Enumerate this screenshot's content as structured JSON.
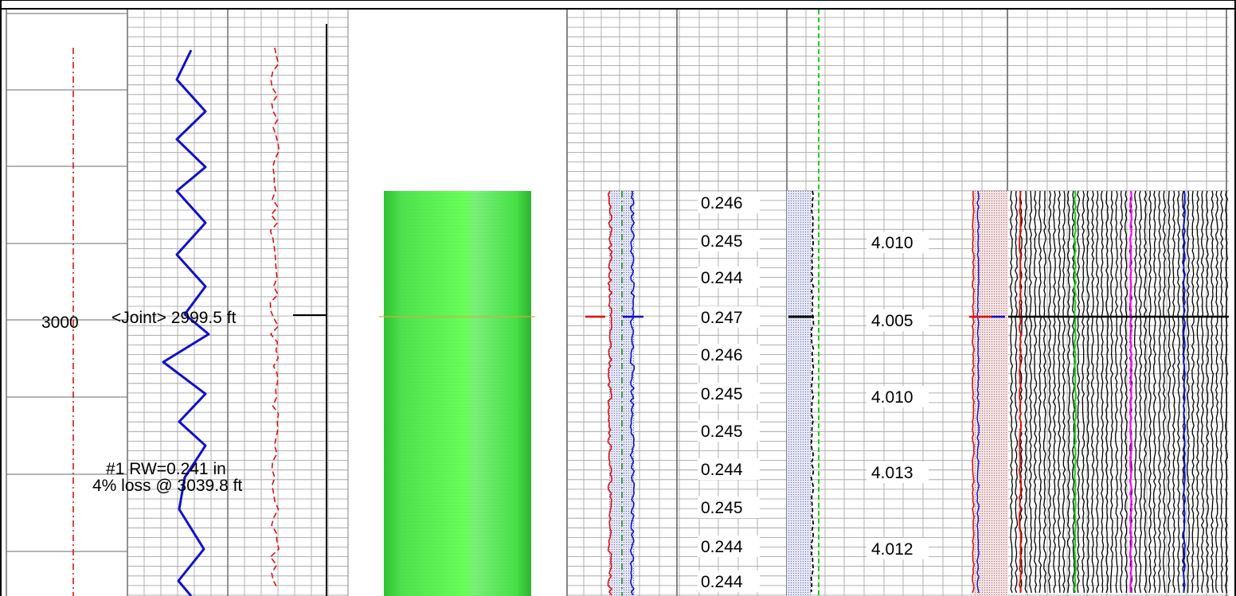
{
  "chart_data": {
    "type": "line",
    "title": "",
    "depth_label": "3000",
    "joint_annotation": "<Joint> 2999.5 ft",
    "loss_annotation": {
      "line1": "#1  RW=0.241 in",
      "line2": "4% loss @ 3039.8 ft"
    },
    "wall_thickness_labels": [
      "0.246",
      "0.245",
      "0.244",
      "0.247",
      "0.246",
      "0.245",
      "0.245",
      "0.244",
      "0.245",
      "0.244",
      "0.244"
    ],
    "id_labels": [
      "4.010",
      "4.005",
      "4.010",
      "4.013",
      "4.012"
    ],
    "colors": {
      "gr_curve": "#1010cc",
      "red_trace": "#dd1111",
      "green_trace": "#22cc22",
      "magenta_trace": "#ff00ff",
      "image_track": "#4cf04c",
      "grid": "#9a9a9a"
    }
  }
}
